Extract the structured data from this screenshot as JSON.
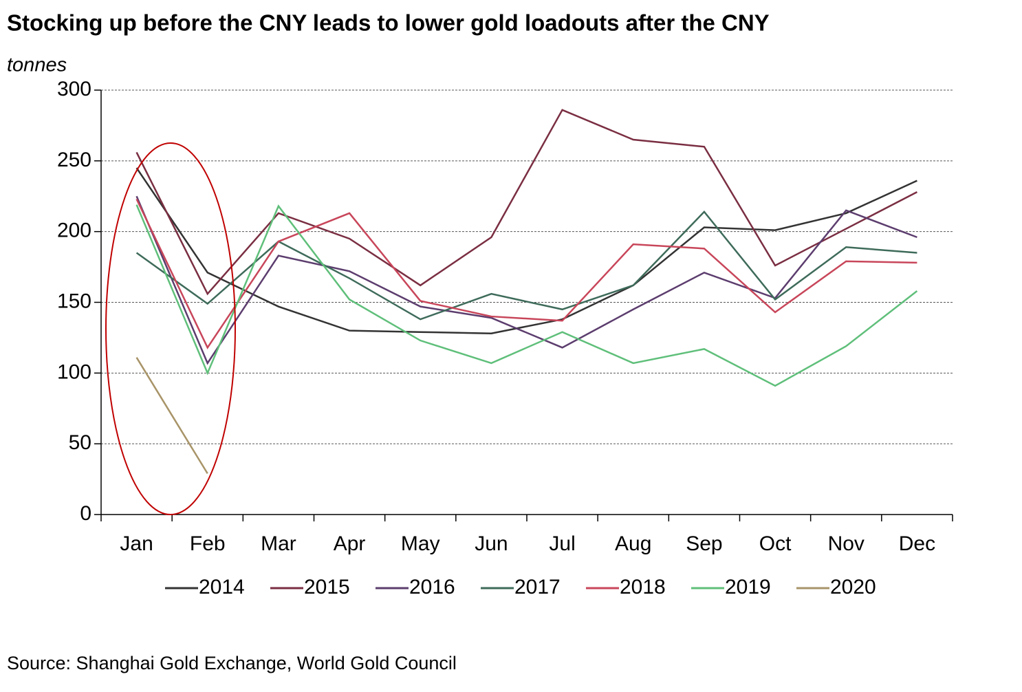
{
  "chart_data": {
    "type": "line",
    "title": "Stocking up before the CNY leads to lower gold loadouts after the CNY",
    "y_label": "tonnes",
    "source": "Source: Shanghai Gold Exchange, World Gold Council",
    "categories": [
      "Jan",
      "Feb",
      "Mar",
      "Apr",
      "May",
      "Jun",
      "Jul",
      "Aug",
      "Sep",
      "Oct",
      "Nov",
      "Dec"
    ],
    "ylim": [
      0,
      300
    ],
    "yticks": [
      0,
      50,
      100,
      150,
      200,
      250,
      300
    ],
    "grid": true,
    "legend": "bottom",
    "series": [
      {
        "name": "2014",
        "color": "#333333",
        "values": [
          245,
          171,
          147,
          130,
          129,
          128,
          138,
          162,
          203,
          201,
          213,
          236
        ]
      },
      {
        "name": "2015",
        "color": "#7a2e42",
        "values": [
          256,
          156,
          213,
          195,
          162,
          196,
          286,
          265,
          260,
          176,
          202,
          228
        ]
      },
      {
        "name": "2016",
        "color": "#5c3d6e",
        "values": [
          225,
          107,
          183,
          172,
          147,
          139,
          118,
          145,
          171,
          153,
          215,
          196
        ]
      },
      {
        "name": "2017",
        "color": "#3e6b5a",
        "values": [
          185,
          149,
          193,
          167,
          138,
          156,
          145,
          162,
          214,
          152,
          189,
          185
        ]
      },
      {
        "name": "2018",
        "color": "#c8465a",
        "values": [
          223,
          118,
          193,
          213,
          151,
          140,
          137,
          191,
          188,
          143,
          179,
          178
        ]
      },
      {
        "name": "2019",
        "color": "#5fbf7a",
        "values": [
          219,
          100,
          218,
          152,
          123,
          107,
          129,
          107,
          117,
          91,
          119,
          158
        ]
      },
      {
        "name": "2020",
        "color": "#a89468",
        "values": [
          111,
          29,
          null,
          null,
          null,
          null,
          null,
          null,
          null,
          null,
          null,
          null
        ]
      }
    ]
  }
}
